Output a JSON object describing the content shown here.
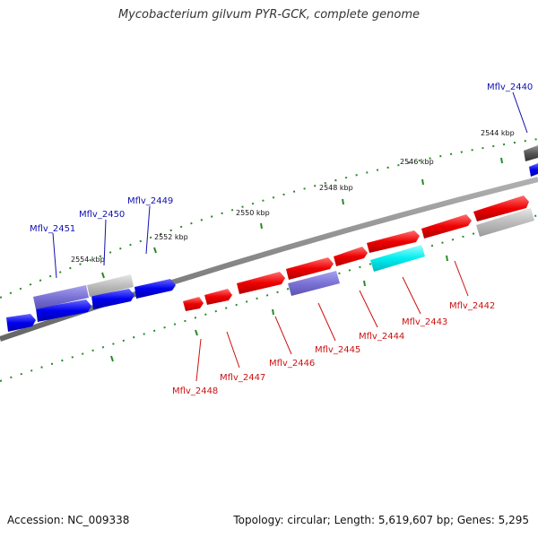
{
  "title": "Mycobacterium gilvum PYR-GCK, complete genome",
  "footer": {
    "accession": "Accession: NC_009338",
    "stats": "Topology: circular; Length: 5,619,607 bp; Genes: 5,295"
  },
  "ruler": {
    "labels": [
      "2544 kbp",
      "2546 kbp",
      "2548 kbp",
      "2550 kbp",
      "2552 kbp",
      "2554 kbp"
    ]
  },
  "colors": {
    "backbone": "#8a8a8a",
    "forward_gene": "#0000ee",
    "reverse_gene": "#ee0000",
    "label_blue": "#1010b0",
    "label_red": "#cc1111",
    "tick": "#2a8a2a",
    "cyan": "#00f0f0",
    "lavender": "#7b72d6",
    "gray": "#b8b8b8"
  },
  "gene_labels": [
    {
      "id": "Mflv_2440",
      "color": "blue"
    },
    {
      "id": "Mflv_2449",
      "color": "blue"
    },
    {
      "id": "Mflv_2450",
      "color": "blue"
    },
    {
      "id": "Mflv_2451",
      "color": "blue"
    },
    {
      "id": "Mflv_2442",
      "color": "red"
    },
    {
      "id": "Mflv_2443",
      "color": "red"
    },
    {
      "id": "Mflv_2444",
      "color": "red"
    },
    {
      "id": "Mflv_2445",
      "color": "red"
    },
    {
      "id": "Mflv_2446",
      "color": "red"
    },
    {
      "id": "Mflv_2447",
      "color": "red"
    },
    {
      "id": "Mflv_2448",
      "color": "red"
    }
  ]
}
